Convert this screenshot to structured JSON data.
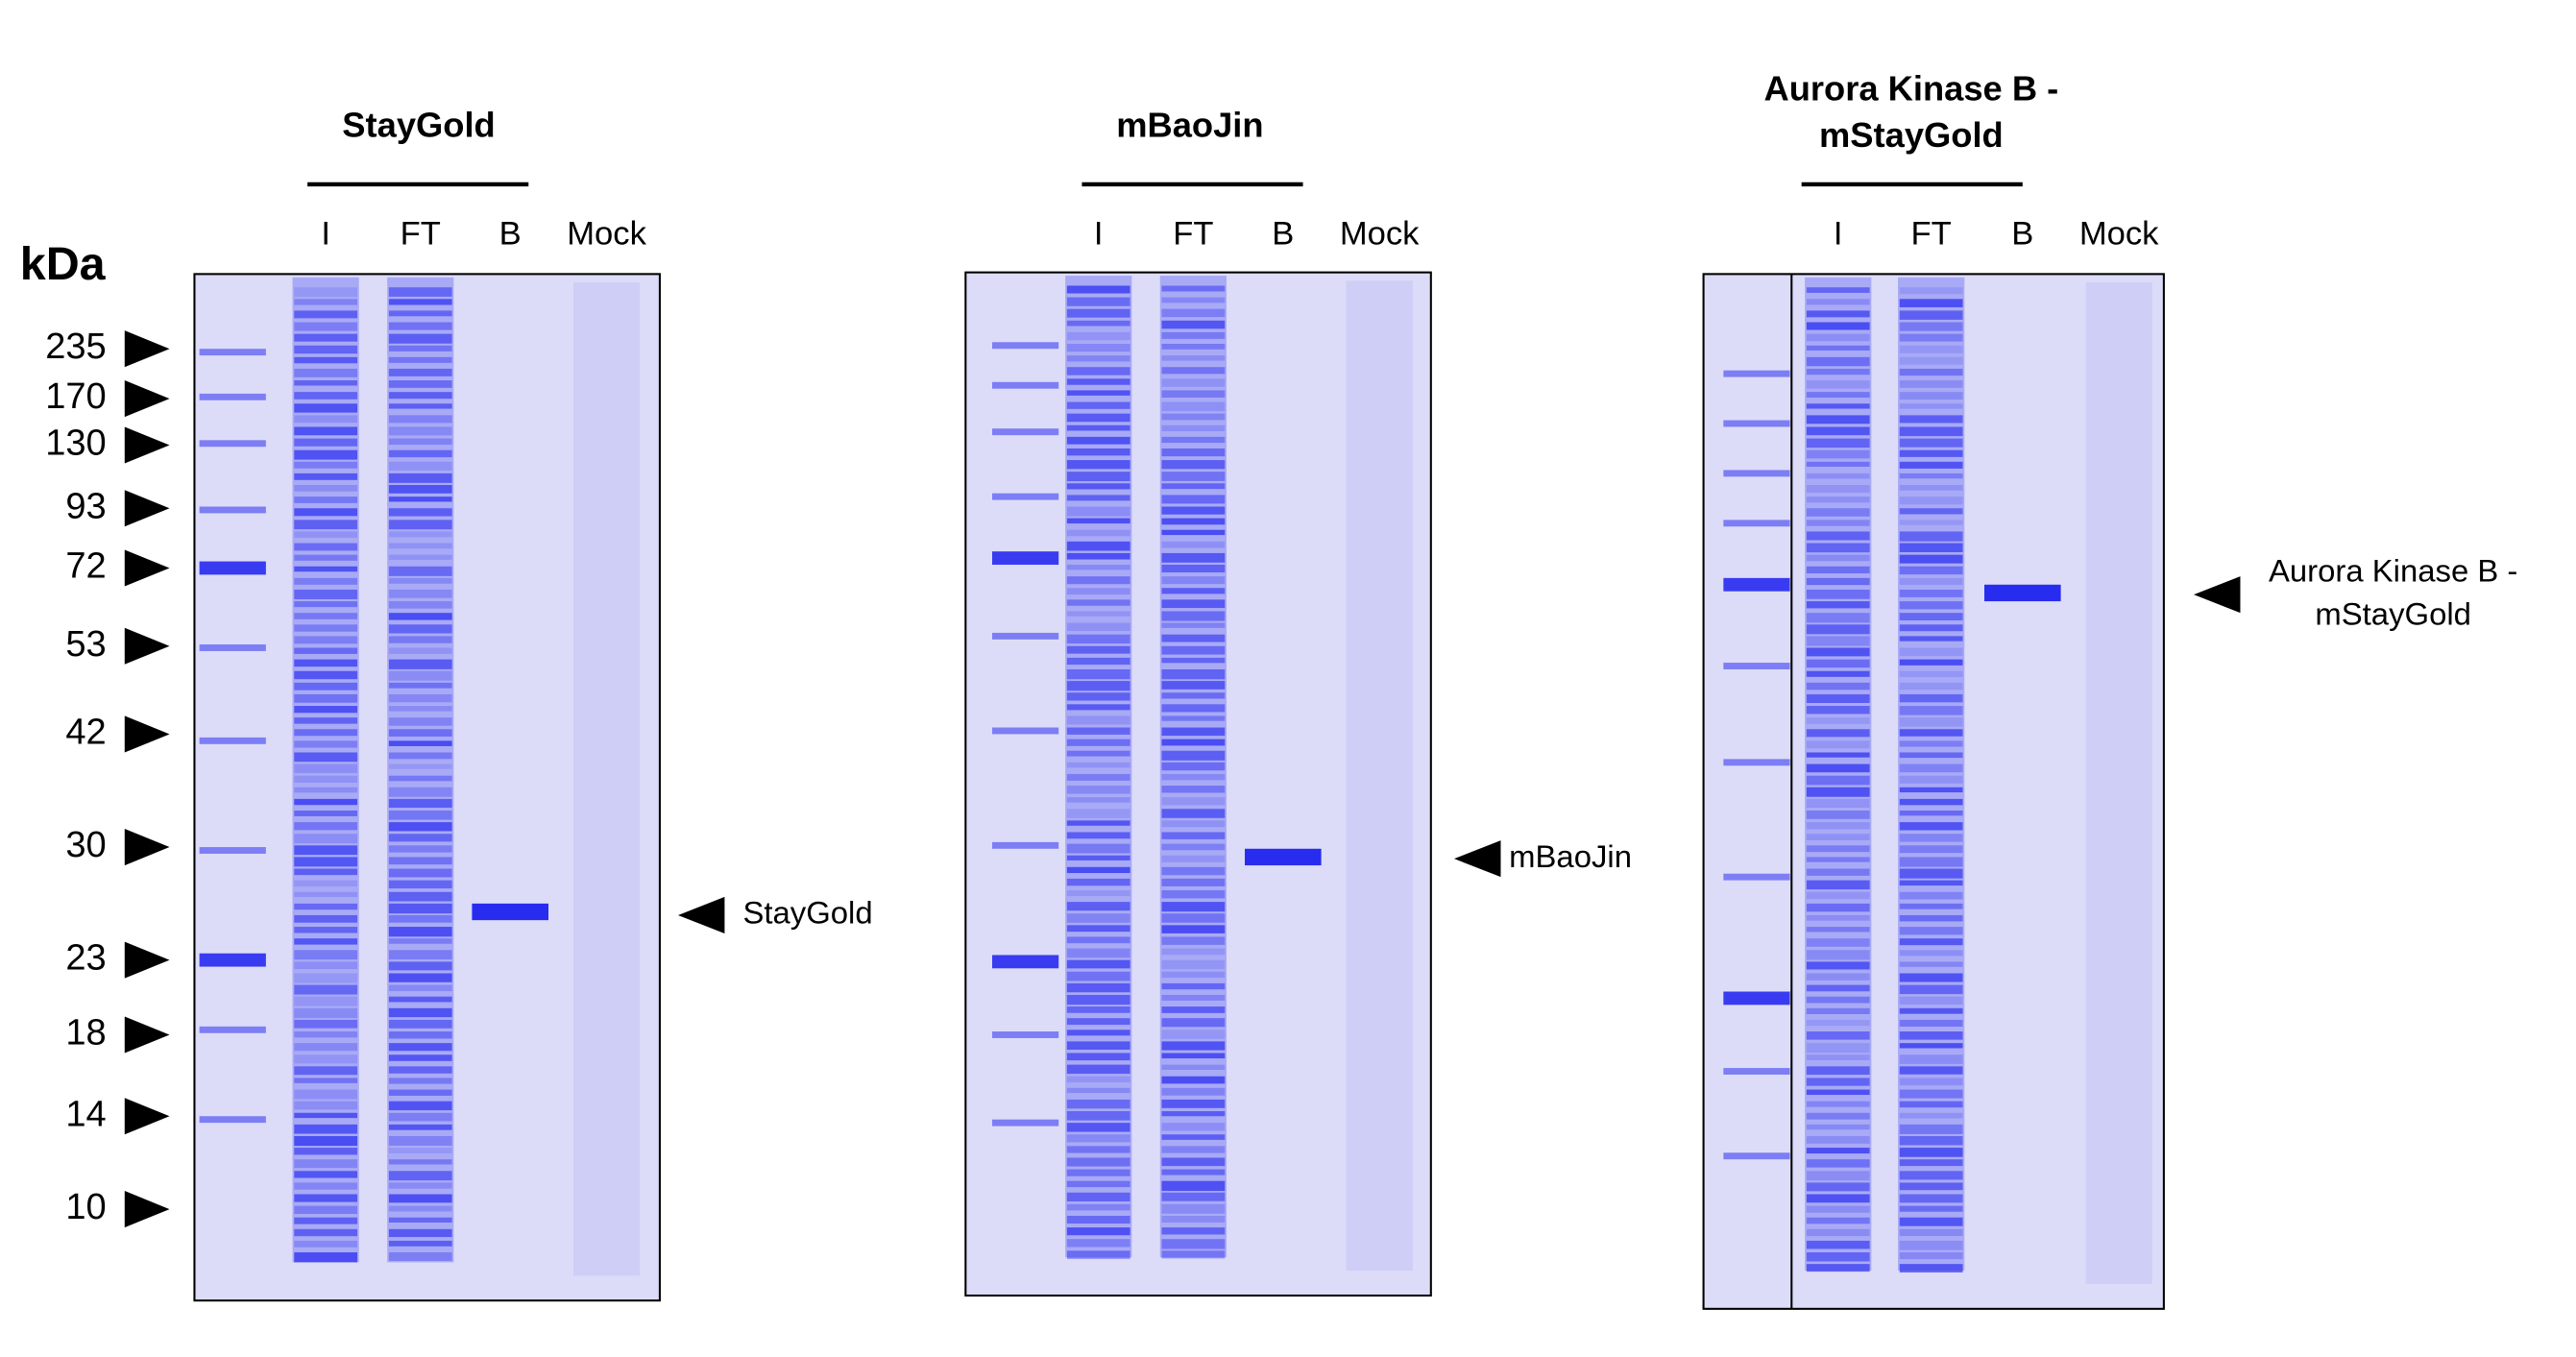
{
  "y_axis_label": "kDa",
  "markers": [
    "235",
    "170",
    "130",
    "93",
    "72",
    "53",
    "42",
    "30",
    "23",
    "18",
    "14",
    "10"
  ],
  "gels": [
    {
      "title": [
        "StayGold"
      ],
      "lanes": [
        "I",
        "FT",
        "B",
        "Mock"
      ],
      "annotation": [
        "StayGold"
      ]
    },
    {
      "title": [
        "mBaoJin"
      ],
      "lanes": [
        "I",
        "FT",
        "B",
        "Mock"
      ],
      "annotation": [
        "mBaoJin"
      ]
    },
    {
      "title": [
        "Aurora Kinase B -",
        "mStayGold"
      ],
      "lanes": [
        "I",
        "FT",
        "B",
        "Mock"
      ],
      "annotation": [
        "Aurora Kinase B -",
        "mStayGold"
      ]
    }
  ]
}
